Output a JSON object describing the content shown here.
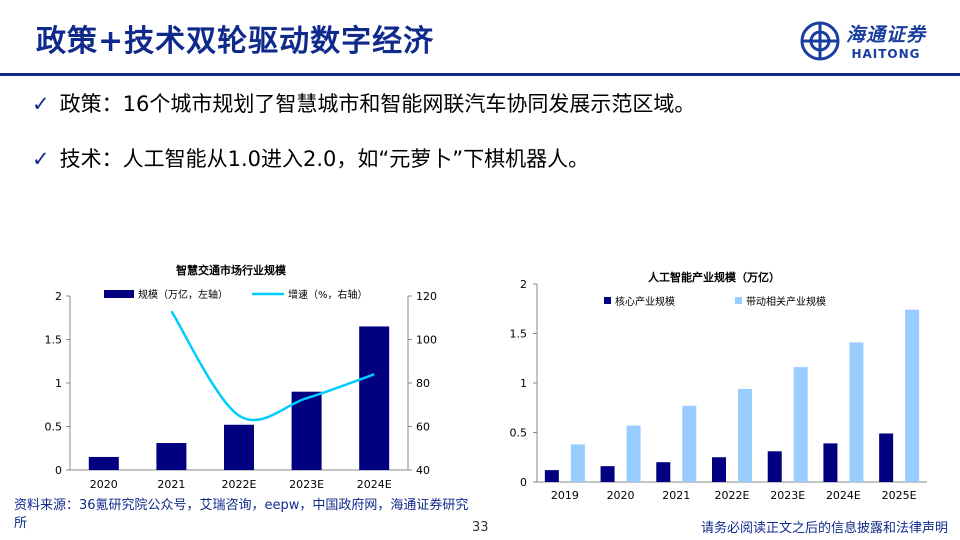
{
  "header": {
    "title": "政策+技术双轮驱动数字经济",
    "logo_cn": "海通证券",
    "logo_en": "HAITONG"
  },
  "bullets": [
    {
      "label": "政策：16个城市规划了智慧城市和智能网联汽车协同发展示范区域。"
    },
    {
      "label": "技术：人工智能从1.0进入2.0，如“元萝卜”下棋机器人。"
    }
  ],
  "chart_data": [
    {
      "type": "bar",
      "title": "智慧交通市场行业规模",
      "categories": [
        "2020",
        "2021",
        "2022E",
        "2023E",
        "2024E"
      ],
      "series": [
        {
          "name": "规模（万亿，左轴）",
          "type": "bar",
          "axis": "left",
          "color": "#000080",
          "values": [
            0.15,
            0.31,
            0.52,
            0.9,
            1.65
          ]
        },
        {
          "name": "增速（%，右轴）",
          "type": "line",
          "axis": "right",
          "color": "#00ccff",
          "values": [
            null,
            113,
            65,
            73,
            84
          ]
        }
      ],
      "ylim": [
        0,
        2
      ],
      "y_ticks": [
        "0",
        "0.5",
        "1",
        "1.5",
        "2"
      ],
      "y2lim": [
        40,
        120
      ],
      "y2_ticks": [
        "40",
        "60",
        "80",
        "100",
        "120"
      ],
      "legend": "top",
      "grid": false
    },
    {
      "type": "bar",
      "title": "人工智能产业规模（万亿）",
      "categories": [
        "2019",
        "2020",
        "2021",
        "2022E",
        "2023E",
        "2024E",
        "2025E"
      ],
      "series": [
        {
          "name": "核心产业规模",
          "color": "#000080",
          "values": [
            0.12,
            0.16,
            0.2,
            0.25,
            0.31,
            0.39,
            0.49
          ]
        },
        {
          "name": "带动相关产业规模",
          "color": "#99ccff",
          "values": [
            0.38,
            0.57,
            0.77,
            0.94,
            1.16,
            1.41,
            1.74
          ]
        }
      ],
      "ylim": [
        0,
        2
      ],
      "y_ticks": [
        "0",
        "0.5",
        "1",
        "1.5",
        "2"
      ],
      "legend": "top",
      "grid": false
    }
  ],
  "footer": {
    "source": "资料来源：36氪研究院公众号，艾瑞咨询，eepw，中国政府网，海通证券研究所",
    "page": "33",
    "disclaimer": "请务必阅读正文之后的信息披露和法律声明"
  }
}
